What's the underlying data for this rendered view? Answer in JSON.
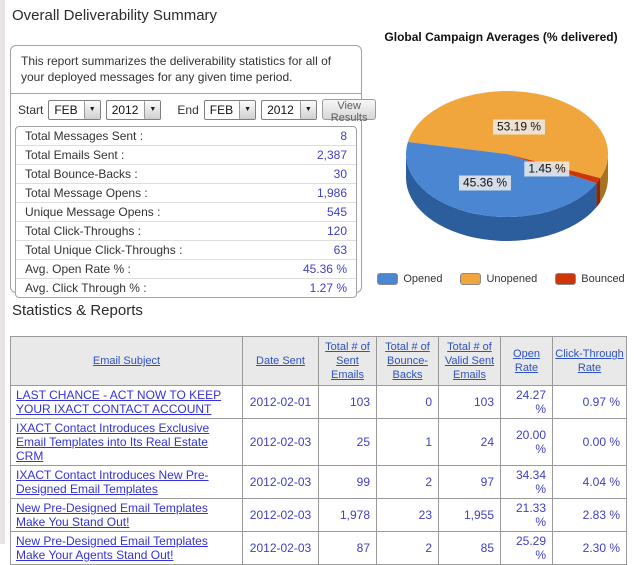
{
  "page": {
    "title": "Overall Deliverability Summary",
    "section2_title": "Statistics & Reports"
  },
  "summary": {
    "description": "This report summarizes the deliverability statistics for all of your deployed messages for any given time period.",
    "filters": {
      "start_label": "Start",
      "end_label": "End",
      "start_month": "FEB",
      "start_year": "2012",
      "end_month": "FEB",
      "end_year": "2012",
      "view_results_label": "View Results"
    },
    "stats": [
      {
        "label": "Total Messages Sent :",
        "value": "8"
      },
      {
        "label": "Total Emails Sent :",
        "value": "2,387"
      },
      {
        "label": "Total Bounce-Backs :",
        "value": "30"
      },
      {
        "label": "Total Message Opens :",
        "value": "1,986"
      },
      {
        "label": "Unique Message Opens :",
        "value": "545"
      },
      {
        "label": "Total Click-Throughs :",
        "value": "120"
      },
      {
        "label": "Total Unique Click-Throughs :",
        "value": "63"
      },
      {
        "label": "Avg. Open Rate % :",
        "value": "45.36 %"
      },
      {
        "label": "Avg. Click Through % :",
        "value": "1.27 %"
      }
    ]
  },
  "chart_data": {
    "type": "pie",
    "style": "3d",
    "title": "Global Campaign Averages (% delivered)",
    "legend_position": "bottom",
    "slices": [
      {
        "name": "Opened",
        "value": 45.36,
        "label": "45.36 %",
        "color": "#4a86d2",
        "side_color": "#2c5d9c"
      },
      {
        "name": "Unopened",
        "value": 53.19,
        "label": "53.19 %",
        "color": "#f0a63d",
        "side_color": "#a6741f"
      },
      {
        "name": "Bounced",
        "value": 1.45,
        "label": "1.45 %",
        "color": "#cc3608",
        "side_color": "#8e2505"
      }
    ]
  },
  "table": {
    "columns": [
      "Email Subject",
      "Date Sent",
      "Total # of Sent Emails",
      "Total # of Bounce-Backs",
      "Total # of Valid Sent Emails",
      "Open Rate",
      "Click-Through Rate"
    ],
    "rows": [
      {
        "subject": "LAST CHANCE - ACT NOW TO KEEP YOUR IXACT CONTACT ACCOUNT",
        "date_sent": "2012-02-01",
        "sent": "103",
        "bounce": "0",
        "valid": "103",
        "open_rate": "24.27 %",
        "ctr": "0.97 %"
      },
      {
        "subject": "IXACT Contact Introduces Exclusive Email Templates into Its Real Estate CRM",
        "date_sent": "2012-02-03",
        "sent": "25",
        "bounce": "1",
        "valid": "24",
        "open_rate": "20.00 %",
        "ctr": "0.00 %"
      },
      {
        "subject": "IXACT Contact Introduces New Pre-Designed Email Templates",
        "date_sent": "2012-02-03",
        "sent": "99",
        "bounce": "2",
        "valid": "97",
        "open_rate": "34.34 %",
        "ctr": "4.04 %"
      },
      {
        "subject": "New Pre-Designed Email Templates Make You Stand Out!",
        "date_sent": "2012-02-03",
        "sent": "1,978",
        "bounce": "23",
        "valid": "1,955",
        "open_rate": "21.33 %",
        "ctr": "2.83 %"
      },
      {
        "subject": "New Pre-Designed Email Templates Make Your Agents Stand Out!",
        "date_sent": "2012-02-03",
        "sent": "87",
        "bounce": "2",
        "valid": "85",
        "open_rate": "25.29 %",
        "ctr": "2.30 %"
      }
    ]
  },
  "colors": {
    "value_text": "#4040c4",
    "header_link": "#2d52bd",
    "subject_link": "#3333d9"
  }
}
